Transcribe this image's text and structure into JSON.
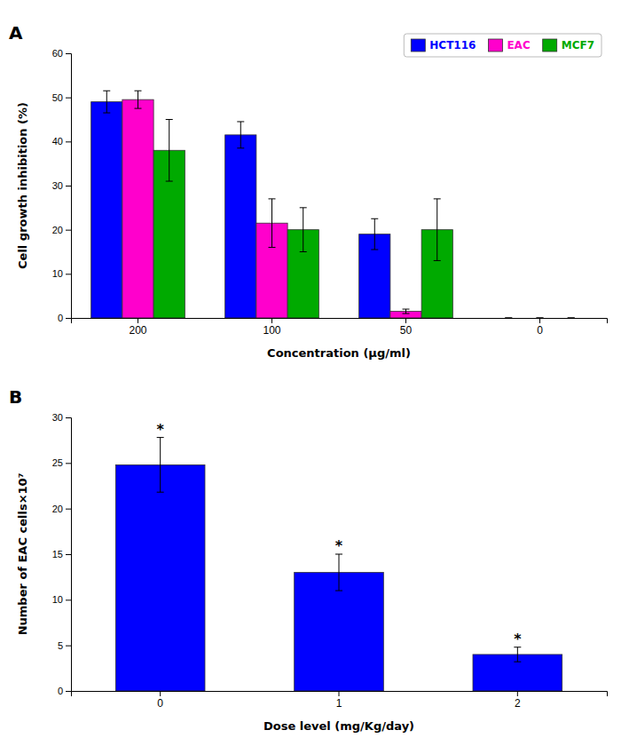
{
  "chart_data": [
    {
      "type": "bar",
      "title": "A",
      "xlabel": "Concentration (μg/ml)",
      "ylabel": "Cell growth inhibition (%)",
      "categories": [
        "200",
        "100",
        "50",
        "0"
      ],
      "series": [
        {
          "name": "HCT116",
          "color": "#0000FF",
          "values": [
            49.0,
            41.5,
            19.0,
            0.0
          ],
          "errors": [
            2.5,
            3.0,
            3.5,
            0.0
          ]
        },
        {
          "name": "EAC",
          "color": "#FF00CC",
          "values": [
            49.5,
            21.5,
            1.5,
            0.0
          ],
          "errors": [
            2.0,
            5.5,
            0.5,
            0.0
          ]
        },
        {
          "name": "MCF7",
          "color": "#00AA00",
          "values": [
            38.0,
            20.0,
            20.0,
            0.0
          ],
          "errors": [
            7.0,
            5.0,
            7.0,
            0.0
          ]
        }
      ],
      "ylim": [
        0,
        60
      ],
      "yticks": [
        0,
        10,
        20,
        30,
        40,
        50,
        60
      ],
      "grid": false,
      "legend": "upper right"
    },
    {
      "type": "bar",
      "title": "B",
      "xlabel": "Dose level (mg/Kg/day)",
      "ylabel": "Number of EAC cells×10⁷",
      "categories": [
        "0",
        "1",
        "2"
      ],
      "values": [
        24.8,
        13.0,
        4.0
      ],
      "errors": [
        3.0,
        2.0,
        0.8
      ],
      "annotations": [
        "*",
        "*",
        "*"
      ],
      "color": "#0000FF",
      "ylim": [
        0,
        30
      ],
      "yticks": [
        0,
        5,
        10,
        15,
        20,
        25,
        30
      ],
      "grid": false
    }
  ]
}
